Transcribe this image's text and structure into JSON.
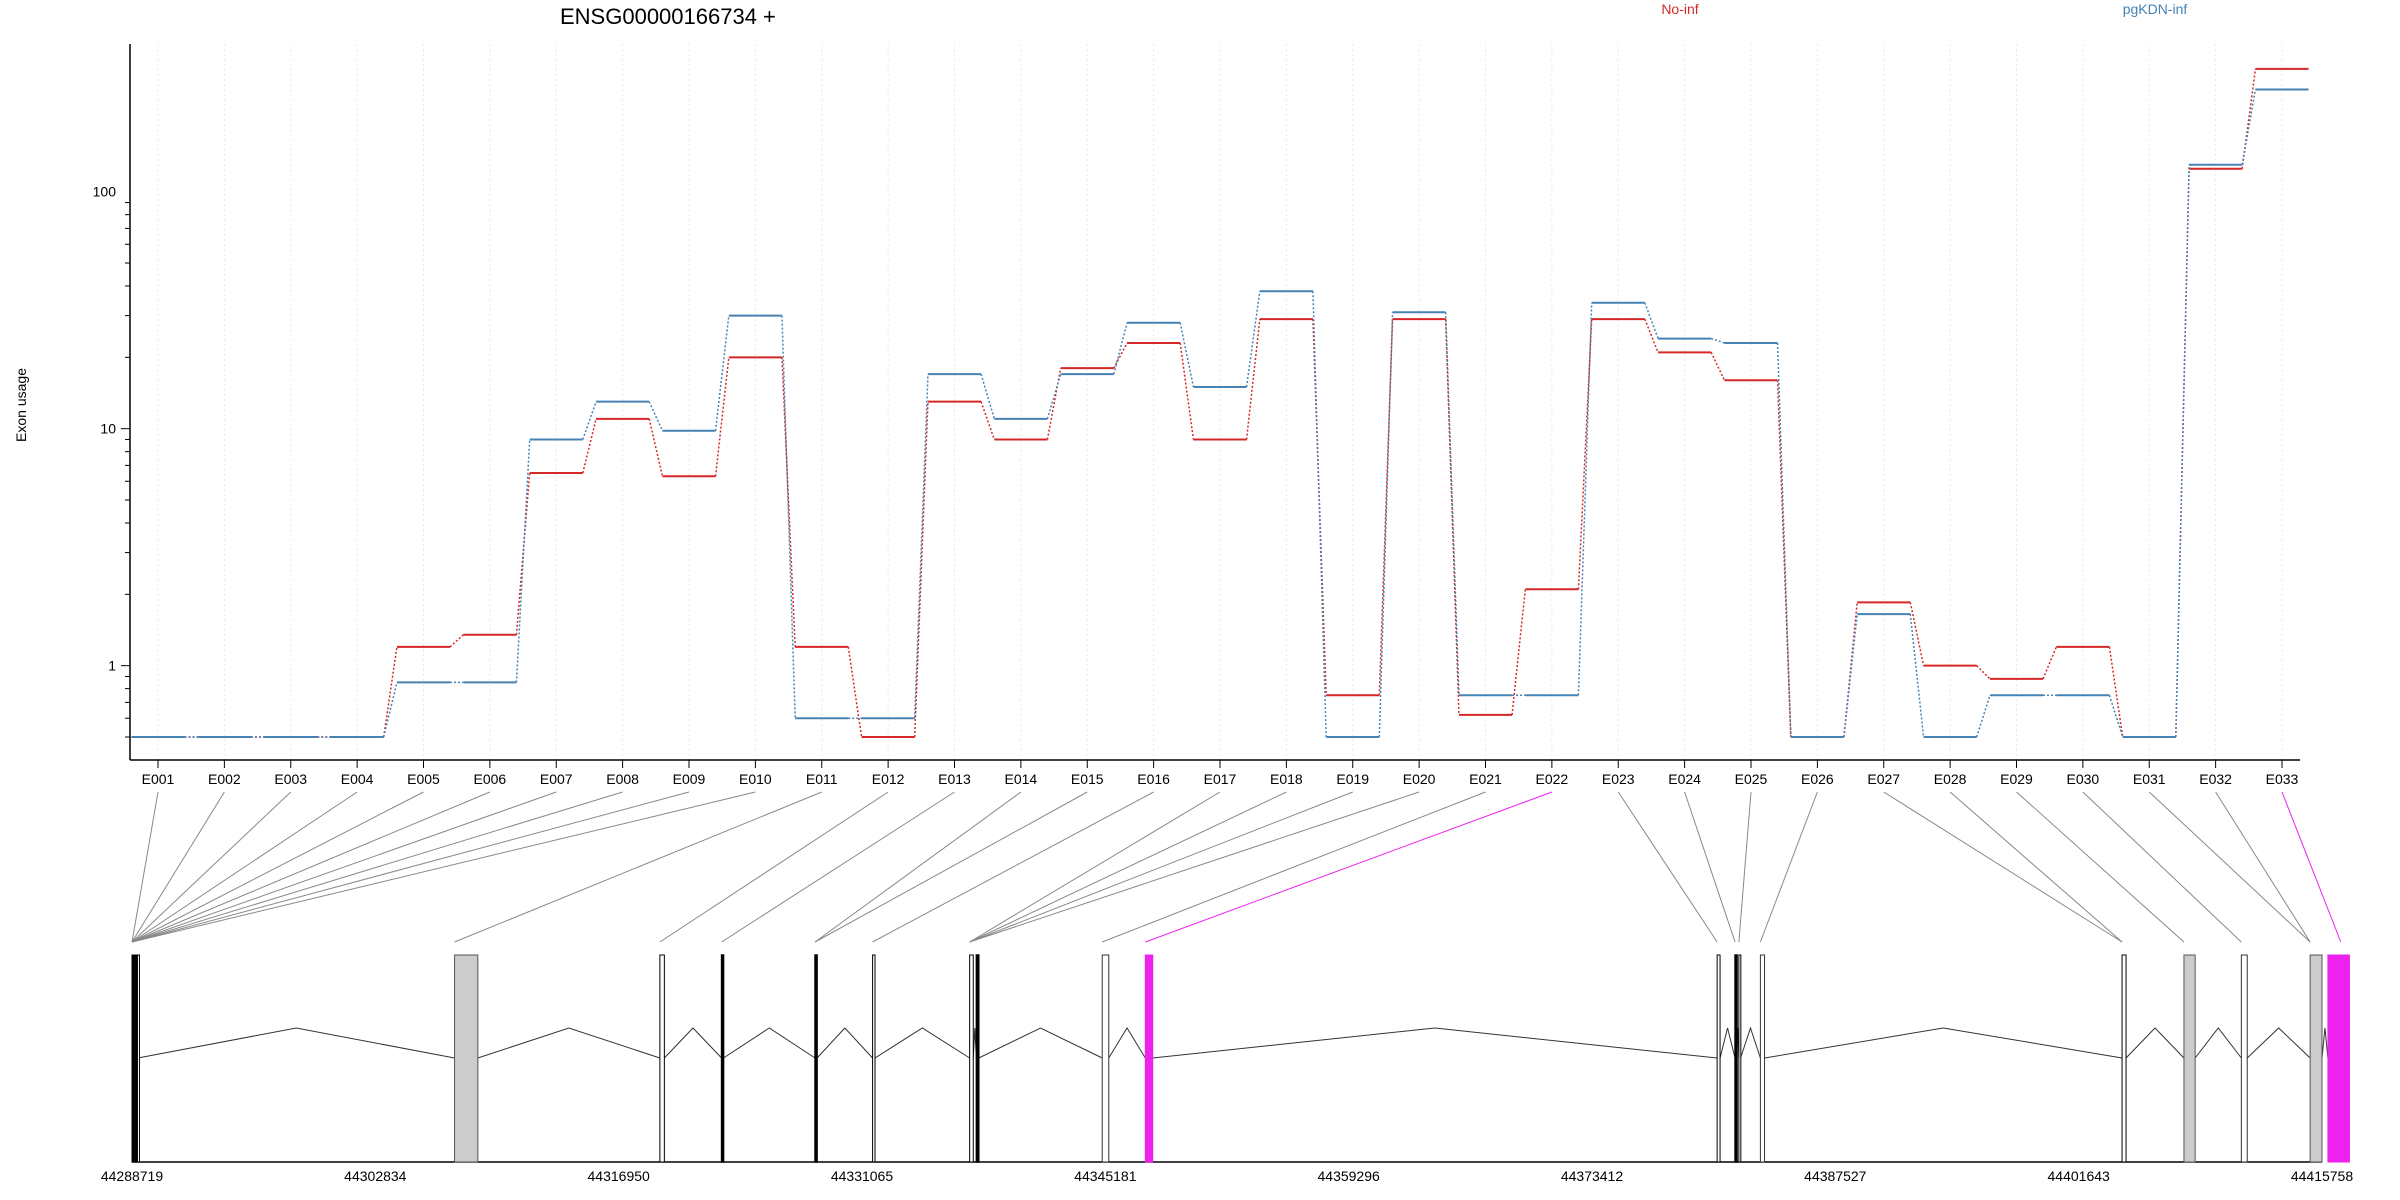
{
  "chart_data": {
    "type": "line",
    "title": "ENSG00000166734 +",
    "ylabel": "Exon usage",
    "xlabel": "",
    "yscale": "log",
    "ylim": [
      0.5,
      420
    ],
    "y_ticks": [
      "1",
      "10",
      "100"
    ],
    "grid": "vertical dotted gridlines at each exon",
    "legend_placement": "top-right",
    "categories": [
      "E001",
      "E002",
      "E003",
      "E004",
      "E005",
      "E006",
      "E007",
      "E008",
      "E009",
      "E010",
      "E011",
      "E012",
      "E013",
      "E014",
      "E015",
      "E016",
      "E017",
      "E018",
      "E019",
      "E020",
      "E021",
      "E022",
      "E023",
      "E024",
      "E025",
      "E026",
      "E027",
      "E028",
      "E029",
      "E030",
      "E031",
      "E032",
      "E033"
    ],
    "series": [
      {
        "name": "No-inf",
        "color": "#d62728",
        "style": "step-dotted-connectors",
        "values": [
          0.5,
          0.5,
          0.5,
          0.5,
          1.2,
          1.35,
          6.5,
          11,
          6.3,
          20,
          1.2,
          0.5,
          13,
          9,
          18,
          23,
          9,
          29,
          0.75,
          29,
          0.62,
          2.1,
          29,
          21,
          16,
          0.5,
          1.85,
          1.0,
          0.88,
          1.2,
          0.5,
          125,
          330
        ]
      },
      {
        "name": "pgKDN-inf",
        "color": "#4682b4",
        "style": "step-dotted-connectors",
        "values": [
          0.5,
          0.5,
          0.5,
          0.5,
          0.85,
          0.85,
          9,
          13,
          9.8,
          30,
          0.6,
          0.6,
          17,
          11,
          17,
          28,
          15,
          38,
          0.5,
          31,
          0.75,
          0.75,
          34,
          24,
          23,
          0.5,
          1.65,
          0.5,
          0.75,
          0.75,
          0.5,
          130,
          270
        ]
      }
    ],
    "gene_model": {
      "x_tick_labels": [
        "44288719",
        "44302834",
        "44316950",
        "44331065",
        "44345181",
        "44359296",
        "44373412",
        "44387527",
        "44401643",
        "44415758"
      ],
      "highlight_color": "#ee22ee",
      "exon_fill": "#cccccc",
      "exon_genomic_ranges": [
        [
          44288719,
          44288740
        ],
        [
          44288755,
          44288770
        ],
        [
          44288785,
          44288800
        ],
        [
          44288815,
          44288830
        ],
        [
          44288845,
          44288870
        ],
        [
          44288885,
          44288910
        ],
        [
          44288925,
          44288945
        ],
        [
          44288960,
          44288985
        ],
        [
          44289000,
          44289020
        ],
        [
          44289035,
          44289060
        ],
        [
          44307430,
          44308780
        ],
        [
          44319340,
          44319600
        ],
        [
          44322920,
          44323030
        ],
        [
          44328340,
          44328460
        ],
        [
          44331680,
          44331820
        ],
        [
          44337310,
          44337520
        ],
        [
          44337700,
          44337840
        ],
        [
          44345000,
          44345380
        ],
        [
          44347500,
          44347930
        ],
        [
          44380670,
          44380840
        ],
        [
          44381710,
          44381810
        ],
        [
          44381930,
          44382030
        ],
        [
          44383180,
          44383420
        ],
        [
          44404160,
          44404390
        ],
        [
          44407750,
          44408400
        ],
        [
          44411080,
          44411420
        ],
        [
          44415070,
          44415758
        ],
        [
          44416100,
          44417350
        ]
      ],
      "exon_flags": [
        "normal",
        "normal",
        "normal",
        "normal",
        "normal",
        "normal",
        "normal",
        "normal",
        "normal",
        "normal",
        "filled",
        "normal",
        "thick",
        "thick",
        "normal",
        "normal",
        "thick",
        "open",
        "highlight",
        "normal",
        "thick",
        "normal",
        "open",
        "normal",
        "filled",
        "open",
        "filled",
        "highlight"
      ],
      "link_targets_genomic": [
        44288719,
        44288719,
        44288719,
        44288719,
        44288719,
        44288719,
        44288719,
        44288719,
        44288719,
        44288719,
        44307430,
        44319340,
        44322920,
        44328340,
        44328340,
        44331680,
        44337310,
        44337310,
        44337310,
        44337310,
        44345000,
        44347500,
        44380670,
        44381710,
        44381930,
        44383180,
        44404160,
        44404160,
        44407750,
        44411080,
        44415070,
        44415070,
        44416850
      ],
      "highlight_exon": "E022"
    }
  }
}
